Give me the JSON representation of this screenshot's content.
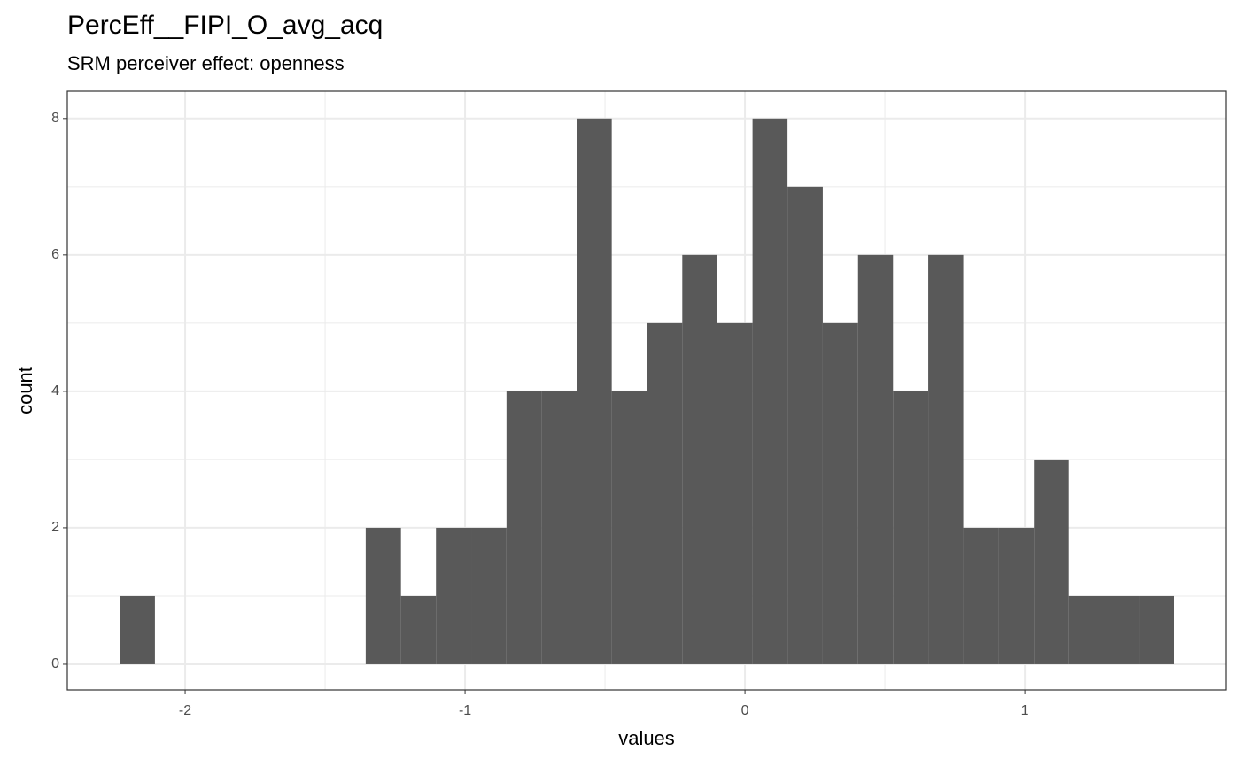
{
  "chart_data": {
    "type": "histogram",
    "title": "PercEff__FIPI_O_avg_acq",
    "subtitle": "SRM perceiver effect: openness",
    "x_label": "values",
    "y_label": "count",
    "bins": [
      -2.234,
      -2.108,
      -1.983,
      -1.857,
      -1.732,
      -1.606,
      -1.48,
      -1.355,
      -1.229,
      -1.104,
      -0.978,
      -0.852,
      -0.727,
      -0.601,
      -0.476,
      -0.35,
      -0.224,
      -0.099,
      0.027,
      0.152,
      0.278,
      0.404,
      0.529,
      0.655,
      0.78,
      0.906,
      1.032,
      1.157,
      1.283,
      1.408,
      1.534
    ],
    "values": [
      1,
      0,
      0,
      0,
      0,
      0,
      0,
      2,
      1,
      2,
      2,
      4,
      4,
      8,
      4,
      5,
      6,
      5,
      8,
      7,
      5,
      6,
      4,
      6,
      2,
      2,
      3,
      1,
      1,
      1
    ],
    "color": "#595959",
    "xlim": [
      -2.421,
      1.718
    ],
    "xticks": [
      -2,
      -1,
      0,
      1
    ],
    "ylim": [
      -0.377,
      8.4
    ],
    "yticks": [
      0,
      2,
      4,
      6,
      8
    ],
    "grid": true
  }
}
